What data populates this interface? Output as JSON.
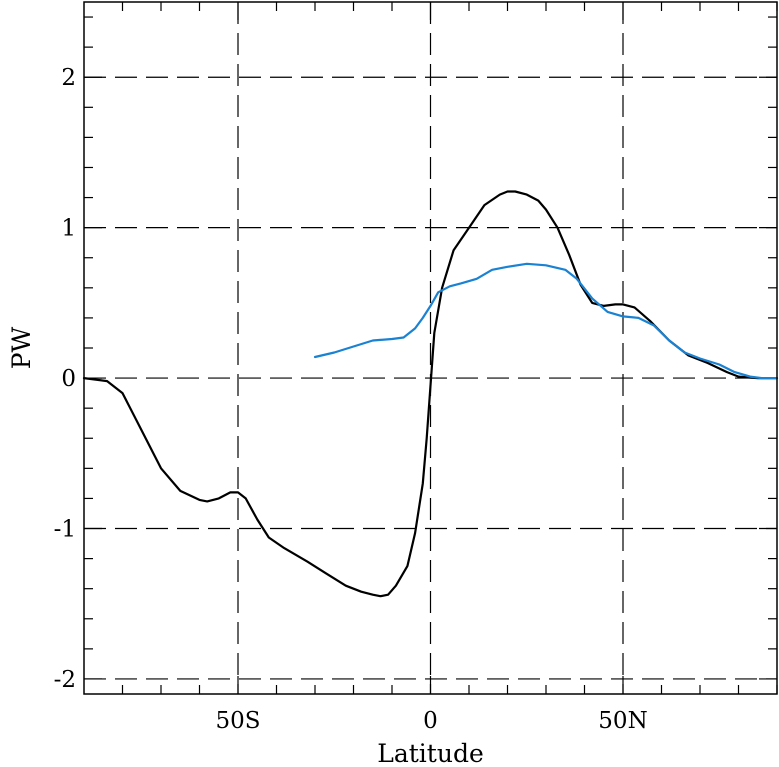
{
  "chart_data": {
    "type": "line",
    "xlabel": "Latitude",
    "ylabel": "PW",
    "xlim": [
      -90,
      90
    ],
    "ylim": [
      -2.1,
      2.5
    ],
    "x_ticks": [
      {
        "value": -50,
        "label": "50S"
      },
      {
        "value": 0,
        "label": "0"
      },
      {
        "value": 50,
        "label": "50N"
      }
    ],
    "y_ticks": [
      {
        "value": -2,
        "label": "-2"
      },
      {
        "value": -1,
        "label": "-1"
      },
      {
        "value": 0,
        "label": "0"
      },
      {
        "value": 1,
        "label": "1"
      },
      {
        "value": 2,
        "label": "2"
      }
    ],
    "x_minor_step": 10,
    "y_minor_step": 0.2,
    "grid": "dashed at major ticks",
    "series": [
      {
        "color": "#000000",
        "points": [
          [
            -90,
            0.0
          ],
          [
            -84,
            -0.02
          ],
          [
            -80,
            -0.1
          ],
          [
            -75,
            -0.35
          ],
          [
            -70,
            -0.6
          ],
          [
            -65,
            -0.75
          ],
          [
            -60,
            -0.81
          ],
          [
            -58,
            -0.82
          ],
          [
            -55,
            -0.8
          ],
          [
            -52,
            -0.76
          ],
          [
            -50,
            -0.76
          ],
          [
            -48,
            -0.8
          ],
          [
            -45,
            -0.94
          ],
          [
            -42,
            -1.06
          ],
          [
            -38,
            -1.13
          ],
          [
            -32,
            -1.22
          ],
          [
            -27,
            -1.3
          ],
          [
            -22,
            -1.38
          ],
          [
            -18,
            -1.42
          ],
          [
            -15,
            -1.44
          ],
          [
            -13,
            -1.45
          ],
          [
            -11,
            -1.44
          ],
          [
            -9,
            -1.38
          ],
          [
            -6,
            -1.25
          ],
          [
            -4,
            -1.03
          ],
          [
            -2,
            -0.7
          ],
          [
            -1,
            -0.4
          ],
          [
            0,
            -0.05
          ],
          [
            1,
            0.3
          ],
          [
            3,
            0.6
          ],
          [
            6,
            0.85
          ],
          [
            10,
            1.0
          ],
          [
            14,
            1.15
          ],
          [
            18,
            1.22
          ],
          [
            20,
            1.24
          ],
          [
            22,
            1.24
          ],
          [
            25,
            1.22
          ],
          [
            28,
            1.18
          ],
          [
            30,
            1.12
          ],
          [
            33,
            1.0
          ],
          [
            36,
            0.82
          ],
          [
            39,
            0.62
          ],
          [
            42,
            0.5
          ],
          [
            45,
            0.48
          ],
          [
            48,
            0.49
          ],
          [
            50,
            0.49
          ],
          [
            53,
            0.47
          ],
          [
            57,
            0.38
          ],
          [
            62,
            0.25
          ],
          [
            67,
            0.15
          ],
          [
            72,
            0.1
          ],
          [
            77,
            0.04
          ],
          [
            80,
            0.01
          ],
          [
            85,
            0.0
          ],
          [
            90,
            0.0
          ]
        ]
      },
      {
        "color": "#1a82d2",
        "points": [
          [
            -30,
            0.14
          ],
          [
            -25,
            0.17
          ],
          [
            -20,
            0.21
          ],
          [
            -15,
            0.25
          ],
          [
            -10,
            0.26
          ],
          [
            -7,
            0.27
          ],
          [
            -4,
            0.33
          ],
          [
            -2,
            0.4
          ],
          [
            0,
            0.48
          ],
          [
            2,
            0.57
          ],
          [
            5,
            0.61
          ],
          [
            8,
            0.63
          ],
          [
            12,
            0.66
          ],
          [
            16,
            0.72
          ],
          [
            20,
            0.74
          ],
          [
            25,
            0.76
          ],
          [
            30,
            0.75
          ],
          [
            35,
            0.72
          ],
          [
            38,
            0.66
          ],
          [
            42,
            0.53
          ],
          [
            46,
            0.44
          ],
          [
            50,
            0.41
          ],
          [
            54,
            0.4
          ],
          [
            58,
            0.35
          ],
          [
            62,
            0.25
          ],
          [
            66,
            0.17
          ],
          [
            70,
            0.13
          ],
          [
            75,
            0.09
          ],
          [
            79,
            0.04
          ],
          [
            83,
            0.01
          ],
          [
            86,
            0.0
          ],
          [
            90,
            0.0
          ]
        ]
      }
    ]
  }
}
